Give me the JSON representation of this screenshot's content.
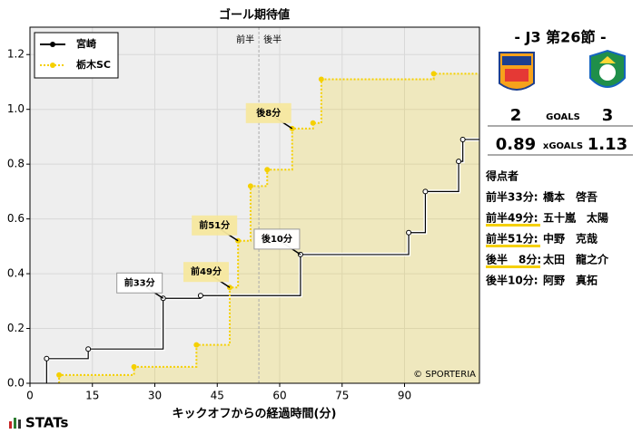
{
  "chart_data": {
    "type": "step",
    "title": "ゴール期待値",
    "x_label": "キックオフからの経過時間(分)",
    "xlim": [
      0,
      108
    ],
    "xticks": [
      0,
      15,
      30,
      45,
      60,
      75,
      90
    ],
    "ylim": [
      0,
      1.3
    ],
    "yticks": [
      {
        "value": 0,
        "label": "0.0"
      },
      {
        "value": 0.2,
        "label": "0.2"
      },
      {
        "value": 0.4,
        "label": "0.4"
      },
      {
        "value": 0.6,
        "label": "0.6"
      },
      {
        "value": 0.8,
        "label": "0.8"
      },
      {
        "value": 1.0,
        "label": "1.0"
      },
      {
        "value": 1.2,
        "label": "1.2"
      }
    ],
    "grid": true,
    "legend": "upper left",
    "halftime": {
      "x": 55,
      "labels": [
        "前半",
        "後半"
      ]
    },
    "series": [
      {
        "name": "宮崎",
        "color": "#000000",
        "style": "solid",
        "fill": false,
        "x": [
          4,
          14,
          32,
          41,
          65,
          91,
          95,
          103,
          104
        ],
        "values": [
          0.09,
          0.125,
          0.31,
          0.32,
          0.47,
          0.55,
          0.7,
          0.81,
          0.89
        ],
        "annotations": [
          {
            "text": "前33分",
            "x": 32,
            "y": 0.31
          },
          {
            "text": "後10分",
            "x": 65,
            "y": 0.47
          }
        ]
      },
      {
        "name": "栃木SC",
        "color": "#f5d000",
        "style": "dotted",
        "fill": true,
        "x": [
          7,
          25,
          40,
          48,
          50,
          53,
          57,
          63,
          68,
          70,
          97
        ],
        "values": [
          0.03,
          0.06,
          0.14,
          0.35,
          0.52,
          0.72,
          0.78,
          0.93,
          0.95,
          1.11,
          1.13
        ],
        "annotations": [
          {
            "text": "前49分",
            "x": 48,
            "y": 0.35
          },
          {
            "text": "前51分",
            "x": 50,
            "y": 0.52
          },
          {
            "text": "後8分",
            "x": 63,
            "y": 0.93
          }
        ]
      }
    ]
  },
  "match": {
    "title": "- J3 第26節 -",
    "goals": {
      "label": "GOALS",
      "home": 2,
      "away": 3
    },
    "xg": {
      "label": "xGOALS",
      "home": {
        "value": 0.89,
        "label": "0.89"
      },
      "away": {
        "value": 1.13,
        "label": "1.13"
      }
    },
    "scorers": {
      "title": "得点者",
      "rows": [
        {
          "time": "前半33分:",
          "name": "橋本　啓吾"
        },
        {
          "time": "前半49分:",
          "name": "五十嵐　太陽",
          "color": "#f5d000"
        },
        {
          "time": "前半51分:",
          "name": "中野　克哉",
          "color": "#f5d000"
        },
        {
          "time": "後半　8分:",
          "name": "太田　龍之介",
          "color": "#f5d000"
        },
        {
          "time": "後半10分:",
          "name": "阿野　真拓"
        }
      ]
    }
  },
  "branding": {
    "copyright": "© SPORTERIA",
    "logo": "STATs"
  }
}
